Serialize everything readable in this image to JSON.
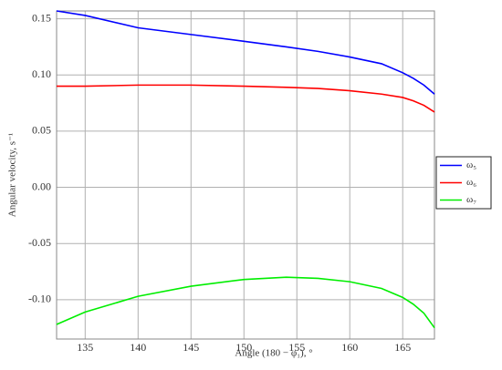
{
  "chart_data": {
    "type": "line",
    "x_label": "Angle (180 − φ₁), °",
    "y_label": "Angular velocity, s⁻¹",
    "x": [
      132.3,
      135,
      140,
      145,
      150,
      154,
      157,
      160,
      163,
      165,
      166,
      167,
      168
    ],
    "series": [
      {
        "name": "ω₅",
        "color": "#0000ff",
        "values": [
          0.157,
          0.153,
          0.142,
          0.136,
          0.13,
          0.125,
          0.121,
          0.116,
          0.11,
          0.102,
          0.097,
          0.091,
          0.083
        ]
      },
      {
        "name": "ω₆",
        "color": "#ff0000",
        "values": [
          0.09,
          0.09,
          0.091,
          0.091,
          0.09,
          0.089,
          0.088,
          0.086,
          0.083,
          0.08,
          0.077,
          0.073,
          0.067
        ]
      },
      {
        "name": "ω₇",
        "color": "#00ee00",
        "values": [
          -0.122,
          -0.111,
          -0.097,
          -0.088,
          -0.082,
          -0.08,
          -0.081,
          -0.084,
          -0.09,
          -0.098,
          -0.104,
          -0.112,
          -0.125
        ]
      }
    ],
    "xlim": [
      132.3,
      168
    ],
    "ylim": [
      -0.135,
      0.157
    ],
    "xticks": [
      135,
      140,
      145,
      150,
      155,
      160,
      165
    ],
    "yticks": [
      {
        "value": -0.1,
        "label": "-0.10"
      },
      {
        "value": -0.05,
        "label": "-0.05"
      },
      {
        "value": 0,
        "label": "0.00"
      },
      {
        "value": 0.05,
        "label": "0.05"
      },
      {
        "value": 0.1,
        "label": "0.10"
      },
      {
        "value": 0.15,
        "label": "0.15"
      }
    ],
    "grid": true,
    "legend": "right"
  }
}
